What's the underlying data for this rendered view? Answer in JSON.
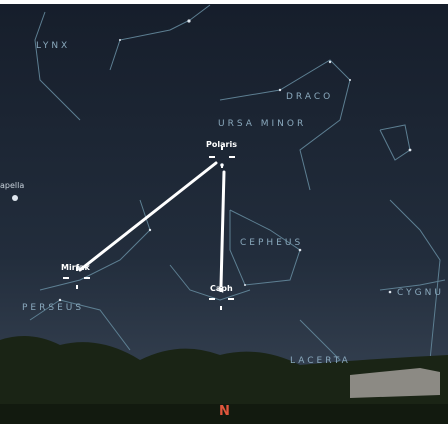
{
  "constellations": [
    "LYNX",
    "DRACO",
    "URSA MINOR",
    "CEPHEUS",
    "PERSEUS",
    "CYGNU",
    "LACERTA"
  ],
  "stars": [
    "Polaris",
    "Mirfak",
    "Caph",
    "apella"
  ],
  "compass": "N"
}
